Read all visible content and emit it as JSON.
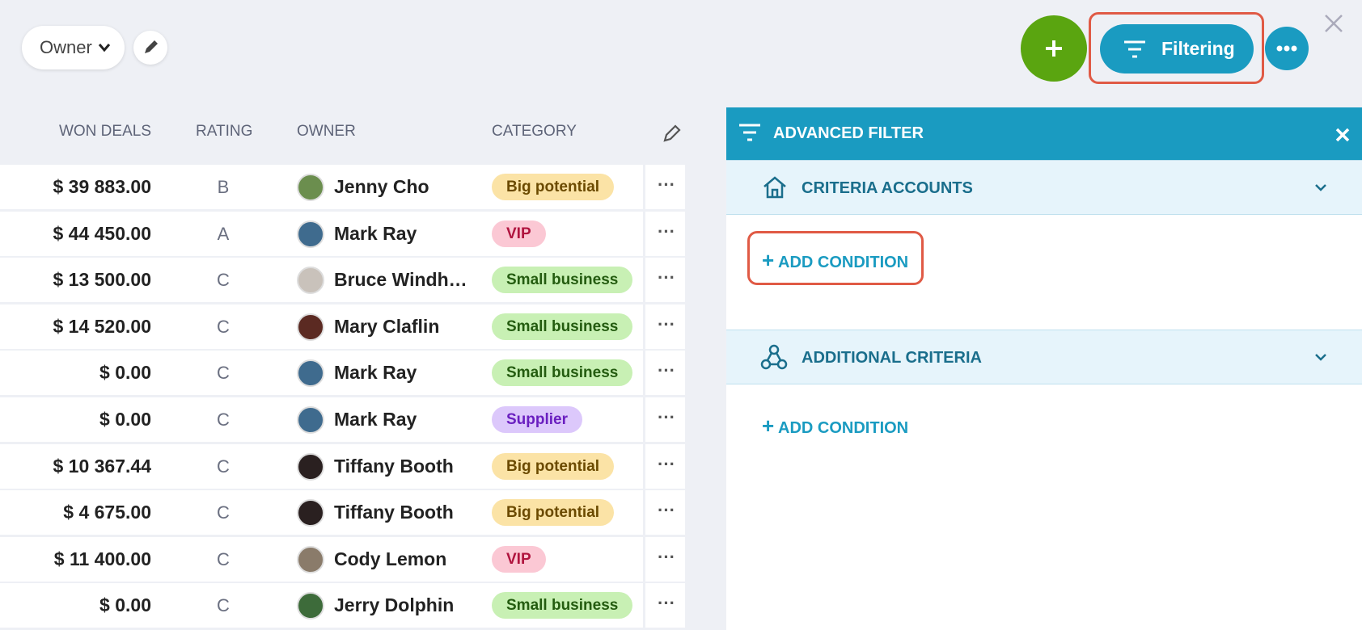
{
  "toolbar": {
    "view_selector": "Owner",
    "filter_button": "Filtering"
  },
  "table": {
    "headers": [
      "WON DEALS",
      "RATING",
      "OWNER",
      "CATEGORY"
    ],
    "rows": [
      {
        "won_deals": "$ 39 883.00",
        "rating": "B",
        "owner": "Jenny Cho",
        "category": "Big potential",
        "tag_bg": "#fbe3a6",
        "tag_fg": "#6b4a00",
        "avatar": "#6b8e4e"
      },
      {
        "won_deals": "$ 44 450.00",
        "rating": "A",
        "owner": "Mark Ray",
        "category": "VIP",
        "tag_bg": "#fbc8d4",
        "tag_fg": "#b0143e",
        "avatar": "#3f6b8e"
      },
      {
        "won_deals": "$ 13 500.00",
        "rating": "C",
        "owner": "Bruce Windh…",
        "category": "Small business",
        "tag_bg": "#c8f0b4",
        "tag_fg": "#245c10",
        "avatar": "#c9c2bb"
      },
      {
        "won_deals": "$ 14 520.00",
        "rating": "C",
        "owner": "Mary Claflin",
        "category": "Small business",
        "tag_bg": "#c8f0b4",
        "tag_fg": "#245c10",
        "avatar": "#5b2a22"
      },
      {
        "won_deals": "$ 0.00",
        "rating": "C",
        "owner": "Mark Ray",
        "category": "Small business",
        "tag_bg": "#c8f0b4",
        "tag_fg": "#245c10",
        "avatar": "#3f6b8e"
      },
      {
        "won_deals": "$ 0.00",
        "rating": "C",
        "owner": "Mark Ray",
        "category": "Supplier",
        "tag_bg": "#dcc8fb",
        "tag_fg": "#6a1fc0",
        "avatar": "#3f6b8e"
      },
      {
        "won_deals": "$ 10 367.44",
        "rating": "C",
        "owner": "Tiffany Booth",
        "category": "Big potential",
        "tag_bg": "#fbe3a6",
        "tag_fg": "#6b4a00",
        "avatar": "#2a2020"
      },
      {
        "won_deals": "$ 4 675.00",
        "rating": "C",
        "owner": "Tiffany Booth",
        "category": "Big potential",
        "tag_bg": "#fbe3a6",
        "tag_fg": "#6b4a00",
        "avatar": "#2a2020"
      },
      {
        "won_deals": "$ 11 400.00",
        "rating": "C",
        "owner": "Cody Lemon",
        "category": "VIP",
        "tag_bg": "#fbc8d4",
        "tag_fg": "#b0143e",
        "avatar": "#8a7b6a"
      },
      {
        "won_deals": "$ 0.00",
        "rating": "C",
        "owner": "Jerry Dolphin",
        "category": "Small business",
        "tag_bg": "#c8f0b4",
        "tag_fg": "#245c10",
        "avatar": "#3d6b3a"
      }
    ]
  },
  "filter_panel": {
    "title": "ADVANCED FILTER",
    "sections": [
      {
        "title": "CRITERIA ACCOUNTS",
        "action": "ADD CONDITION"
      },
      {
        "title": "ADDITIONAL CRITERIA",
        "action": "ADD CONDITION"
      }
    ]
  }
}
